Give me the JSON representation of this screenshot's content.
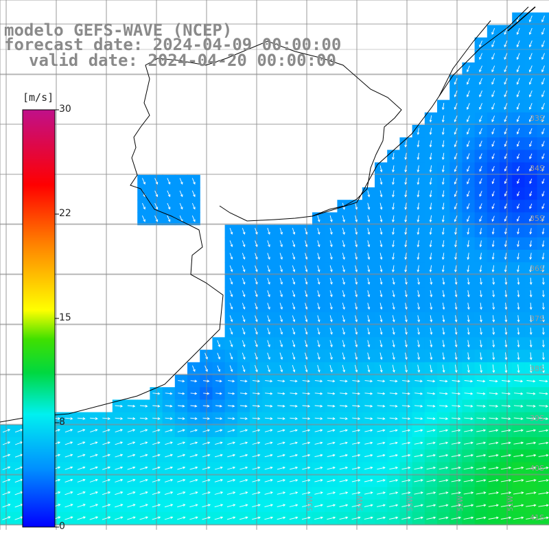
{
  "title": {
    "model": "modelo GEFS-WAVE (NCEP)",
    "forecast": "forecast date: 2024-04-09 00:00:00",
    "valid": "valid date: 2024-04-20 00:00:00"
  },
  "colorbar": {
    "unit": "[m/s]",
    "ticks": [
      "30",
      "22",
      "15",
      "8",
      "0"
    ],
    "tick_values": [
      30,
      22,
      15,
      8,
      0
    ],
    "range": [
      0,
      30
    ],
    "colors": [
      "#0000ff",
      "#0090ff",
      "#00f0f0",
      "#00e000",
      "#ffff00",
      "#ff8000",
      "#ff0000",
      "#c0108a"
    ]
  },
  "grid": {
    "lat_labels": [
      "33S",
      "34S",
      "35S",
      "36S",
      "37S",
      "38S",
      "39S",
      "40S",
      "41S"
    ],
    "lon_labels": [
      "55W",
      "54W",
      "53W",
      "52W",
      "51W"
    ],
    "grid_color": "#808080"
  },
  "map_style": {
    "land_color": "#ffffff",
    "coast_color": "#000000",
    "arrow_color": "#ffffff"
  }
}
